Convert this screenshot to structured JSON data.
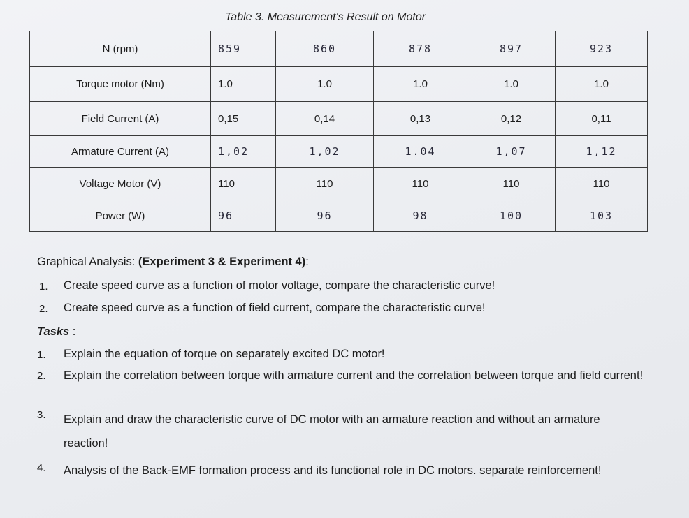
{
  "caption": "Table 3. Measurement's Result on Motor",
  "table": {
    "rows": [
      {
        "label": "N (rpm)",
        "cells": [
          "859",
          "860",
          "878",
          "897",
          "923"
        ],
        "handwritten": true
      },
      {
        "label": "Torque motor (Nm)",
        "cells": [
          "1.0",
          "1.0",
          "1.0",
          "1.0",
          "1.0"
        ],
        "handwritten": false
      },
      {
        "label": "Field Current (A)",
        "cells": [
          "0,15",
          "0,14",
          "0,13",
          "0,12",
          "0,11"
        ],
        "handwritten": false
      },
      {
        "label": "Armature Current (A)",
        "cells": [
          "1,02",
          "1,02",
          "1.04",
          "1,07",
          "1,12"
        ],
        "handwritten": true
      },
      {
        "label": "Voltage Motor (V)",
        "cells": [
          "110",
          "110",
          "110",
          "110",
          "110"
        ],
        "handwritten": false
      },
      {
        "label": "Power (W)",
        "cells": [
          "96",
          "96",
          "98",
          "100",
          "103"
        ],
        "handwritten": true
      }
    ]
  },
  "graphical": {
    "heading_prefix": "Graphical Analysis: ",
    "heading_bold": "(Experiment 3 & Experiment 4)",
    "heading_suffix": ":",
    "items": [
      {
        "num": "1.",
        "text": "Create speed curve as a function of motor voltage, compare the characteristic curve!"
      },
      {
        "num": "2.",
        "text": "Create speed curve as a function of field current, compare the characteristic curve!"
      }
    ]
  },
  "tasks": {
    "heading": "Tasks",
    "colon": " :",
    "items": [
      {
        "num": "1.",
        "text": "Explain the equation of torque on separately excited DC motor!"
      },
      {
        "num": "2.",
        "text": "Explain the correlation between torque with armature current and the correlation between torque and field current!"
      },
      {
        "num": "3.",
        "text": "Explain and draw the characteristic curve of DC motor with an armature reaction and without an armature reaction!"
      },
      {
        "num": "4.",
        "text": "Analysis of the Back-EMF formation process and its functional role in DC motors. separate reinforcement!"
      }
    ]
  }
}
